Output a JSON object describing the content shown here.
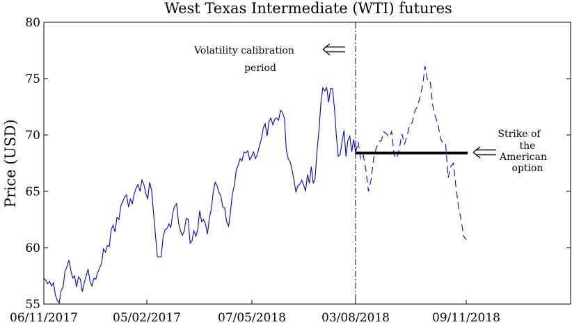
{
  "chart_data": {
    "type": "line",
    "title": "West Texas Intermediate (WTI) futures",
    "xlabel": "",
    "ylabel": "Price (USD)",
    "ylim": [
      55,
      80
    ],
    "yticks": [
      55,
      60,
      65,
      70,
      75,
      80
    ],
    "xticks": [
      "06/11/2017",
      "05/02/2017",
      "07/05/2018",
      "03/08/2018",
      "09/11/2018"
    ],
    "grid": false,
    "legend": "none",
    "x_calibration_boundary_tick": "03/08/2018",
    "x_end_tick": "09/11/2018",
    "strike": 68.4,
    "annotations": {
      "calibration_line1": "Volatility calibration",
      "calibration_line2": "period",
      "strike_line1": "Strike of",
      "strike_line2": "the",
      "strike_line3": "American",
      "strike_line4": "option"
    },
    "series": [
      {
        "style": "solid",
        "color": "#0000cc",
        "values": [
          57.3,
          57.1,
          56.8,
          57.0,
          56.6,
          56.9,
          55.8,
          55.3,
          55.1,
          56.2,
          56.5,
          57.9,
          58.3,
          58.9,
          58.0,
          57.3,
          57.5,
          56.5,
          57.4,
          57.2,
          56.1,
          56.9,
          57.5,
          58.1,
          57.0,
          56.6,
          57.3,
          57.2,
          57.8,
          58.2,
          58.6,
          59.9,
          59.6,
          60.2,
          60.1,
          61.6,
          62.0,
          61.4,
          62.7,
          62.5,
          63.7,
          64.1,
          64.5,
          64.7,
          63.6,
          64.3,
          63.9,
          64.8,
          65.3,
          65.6,
          65.0,
          66.0,
          65.6,
          64.8,
          64.3,
          65.8,
          65.1,
          63.1,
          61.1,
          59.2,
          59.2,
          59.2,
          61.0,
          61.6,
          61.7,
          62.1,
          61.8,
          63.1,
          63.7,
          63.9,
          62.2,
          61.5,
          61.1,
          61.5,
          62.6,
          62.5,
          60.4,
          60.6,
          61.5,
          61.0,
          61.6,
          63.3,
          62.3,
          62.5,
          62.1,
          61.2,
          62.6,
          63.4,
          64.9,
          65.8,
          65.5,
          64.9,
          64.6,
          63.6,
          63.5,
          62.3,
          61.9,
          63.2,
          64.8,
          65.5,
          66.9,
          67.3,
          67.9,
          67.7,
          68.5,
          68.4,
          68.6,
          67.8,
          68.1,
          68.5,
          67.9,
          68.3,
          69.0,
          69.6,
          70.6,
          71.0,
          69.9,
          71.2,
          71.5,
          70.9,
          71.4,
          71.5,
          71.3,
          72.2,
          72.0,
          71.5,
          68.7,
          67.9,
          67.6,
          66.9,
          66.0,
          64.9,
          65.5,
          65.6,
          66.0,
          65.6,
          65.0,
          66.5,
          65.7,
          67.2,
          65.7,
          66.2,
          68.7,
          70.5,
          72.9,
          74.2,
          73.9,
          74.2,
          72.9,
          74.1,
          74.1,
          72.4,
          70.0,
          68.1,
          68.3,
          69.4,
          70.4,
          68.1,
          69.5,
          69.9,
          68.5,
          69.6,
          68.4
        ]
      },
      {
        "style": "dashed",
        "color": "#0000cc",
        "values": [
          68.4,
          69.4,
          67.8,
          68.2,
          66.9,
          65.0,
          66.0,
          67.9,
          68.8,
          69.4,
          69.5,
          70.3,
          70.1,
          69.8,
          70.3,
          68.2,
          67.9,
          68.8,
          70.1,
          69.2,
          69.9,
          70.9,
          71.1,
          72.1,
          72.5,
          73.3,
          74.3,
          76.1,
          74.8,
          74.8,
          72.6,
          71.6,
          71.0,
          69.7,
          69.2,
          69.2,
          66.2,
          67.2,
          67.5,
          65.4,
          63.6,
          62.5,
          61.0,
          60.7
        ]
      }
    ]
  }
}
